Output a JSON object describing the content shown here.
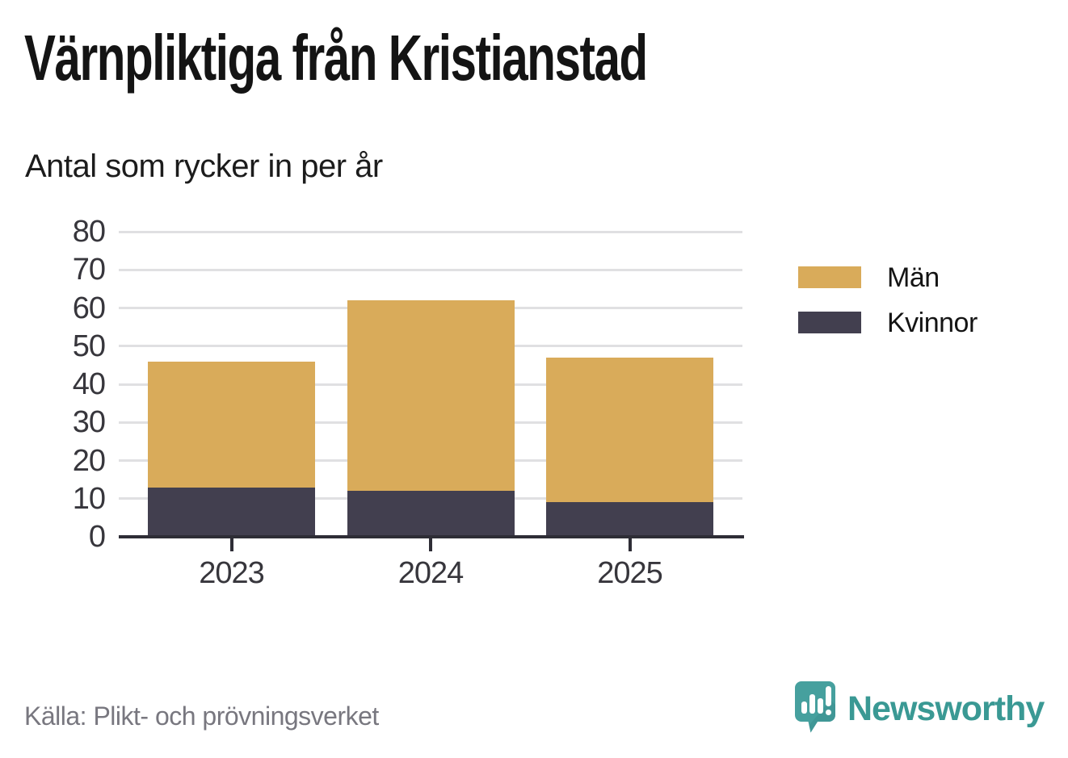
{
  "title": "Värnpliktiga från Kristianstad",
  "subtitle": "Antal som rycker in per år",
  "source_note": "Källa: Plikt- och prövningsverket",
  "brand": {
    "name": "Newsworthy",
    "icon": "newsworthy-speech-bubble-chart-icon",
    "color": "#3a9994"
  },
  "colors": {
    "men": "#d9ab5a",
    "women": "#423f4f",
    "grid": "#e0e0e2",
    "axis": "#2e2d36",
    "tick_label": "#37363c",
    "source_text": "#78777f",
    "background": "#ffffff"
  },
  "chart_data": {
    "type": "bar",
    "stacked": true,
    "title": "Värnpliktiga från Kristianstad",
    "subtitle": "Antal som rycker in per år",
    "categories": [
      "2023",
      "2024",
      "2025"
    ],
    "series": [
      {
        "name": "Män",
        "color": "#d9ab5a",
        "values": [
          33,
          50,
          38
        ]
      },
      {
        "name": "Kvinnor",
        "color": "#423f4f",
        "values": [
          13,
          12,
          9
        ]
      }
    ],
    "stack_bottom_to_top": [
      "Kvinnor",
      "Män"
    ],
    "stack_totals": [
      46,
      62,
      47
    ],
    "xlabel": "",
    "ylabel": "",
    "ylim": [
      0,
      80
    ],
    "yticks": [
      0,
      10,
      20,
      30,
      40,
      50,
      60,
      70,
      80
    ],
    "grid": true,
    "legend_position": "right-top"
  },
  "legend": {
    "items": [
      {
        "label": "Män",
        "color": "#d9ab5a"
      },
      {
        "label": "Kvinnor",
        "color": "#423f4f"
      }
    ]
  }
}
